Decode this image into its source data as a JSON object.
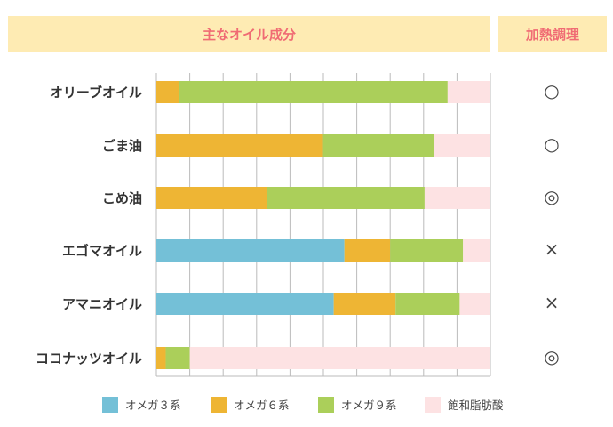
{
  "header": {
    "main": "主なオイル成分",
    "cooking": "加熱調理"
  },
  "chart_data": {
    "type": "bar",
    "orientation": "horizontal",
    "stacked": true,
    "xlim": [
      0,
      100
    ],
    "grid": true,
    "categories": [
      "オリーブオイル",
      "ごま油",
      "こめ油",
      "エゴマオイル",
      "アマニオイル",
      "ココナッツオイル"
    ],
    "series": [
      {
        "name": "オメガ３系",
        "color": "#74c0d7",
        "values": [
          0,
          0,
          0,
          56.3,
          53.1,
          0
        ]
      },
      {
        "name": "オメガ６系",
        "color": "#eeb534",
        "values": [
          6.8,
          49.9,
          33.2,
          13.7,
          18.5,
          2.8
        ]
      },
      {
        "name": "オメガ９系",
        "color": "#abcf5a",
        "values": [
          80.4,
          33.1,
          47.1,
          21.8,
          19.2,
          7.2
        ]
      },
      {
        "name": "飽和脂肪酸",
        "color": "#fde2e3",
        "values": [
          12.8,
          17.0,
          19.7,
          8.2,
          9.2,
          90.0
        ]
      }
    ],
    "cooking": [
      "○",
      "○",
      "◎",
      "×",
      "×",
      "◎"
    ]
  }
}
